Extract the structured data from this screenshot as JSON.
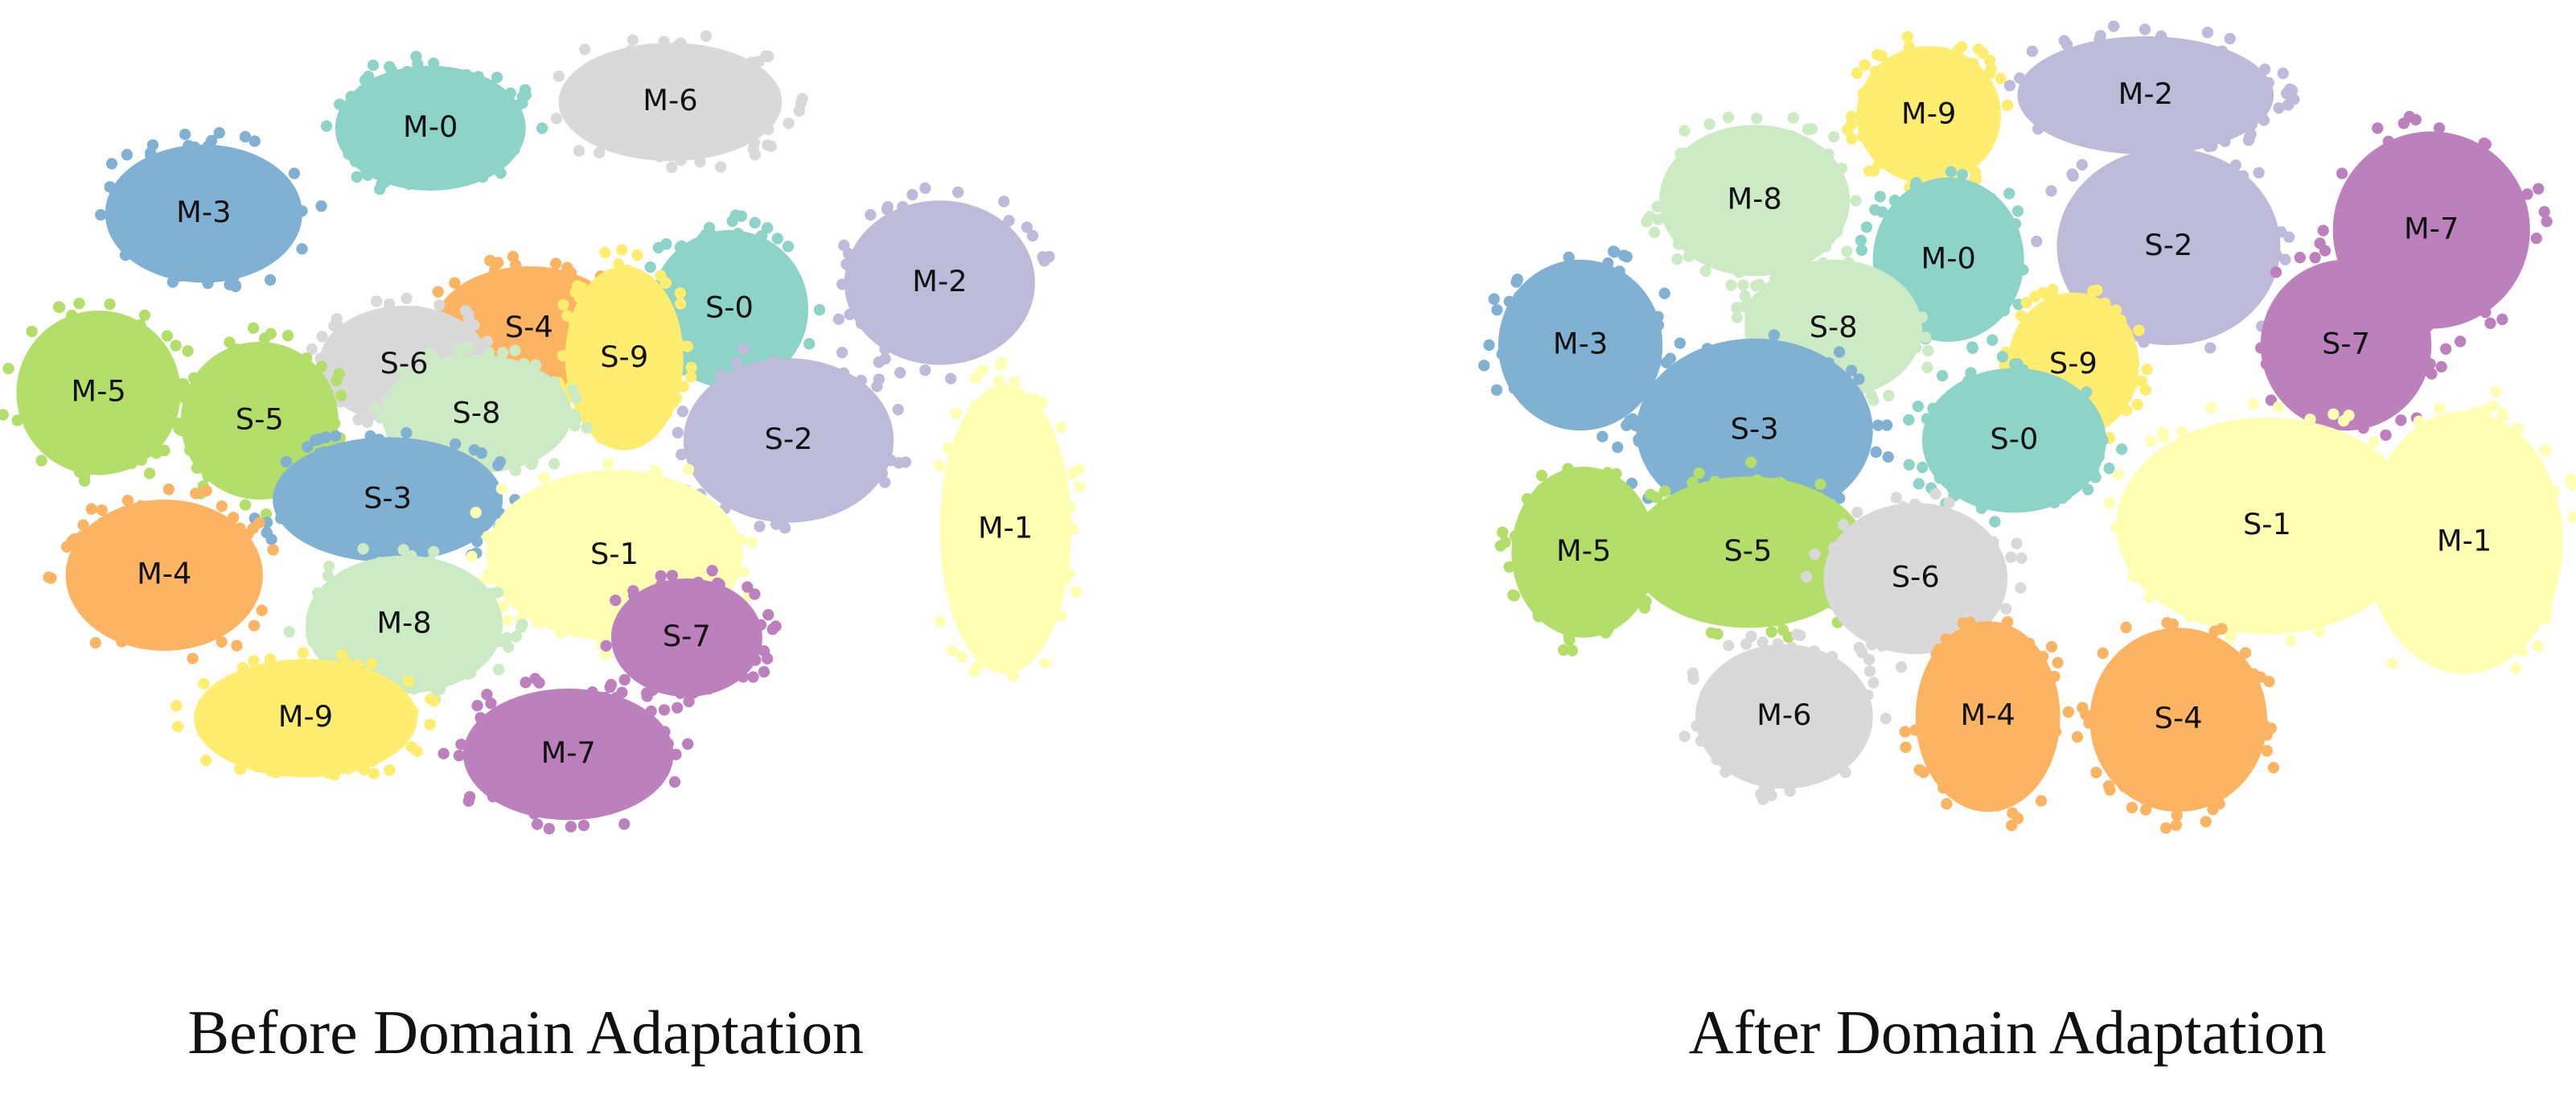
{
  "panels": [
    {
      "title": "Before Domain Adaptation",
      "clusters": [
        {
          "label": "M-0",
          "color": "#8dd3c7"
        },
        {
          "label": "M-6",
          "color": "#d9d9d9"
        },
        {
          "label": "M-3",
          "color": "#80b1d3"
        },
        {
          "label": "M-2",
          "color": "#bebada"
        },
        {
          "label": "S-4",
          "color": "#fdb462"
        },
        {
          "label": "S-0",
          "color": "#8dd3c7"
        },
        {
          "label": "S-6",
          "color": "#d9d9d9"
        },
        {
          "label": "S-9",
          "color": "#ffed6f"
        },
        {
          "label": "M-5",
          "color": "#b3de69"
        },
        {
          "label": "S-5",
          "color": "#b3de69"
        },
        {
          "label": "S-8",
          "color": "#ccebc5"
        },
        {
          "label": "S-2",
          "color": "#bebada"
        },
        {
          "label": "S-3",
          "color": "#80b1d3"
        },
        {
          "label": "M-1",
          "color": "#ffffb3"
        },
        {
          "label": "S-1",
          "color": "#ffffb3"
        },
        {
          "label": "M-4",
          "color": "#fdb462"
        },
        {
          "label": "M-8",
          "color": "#ccebc5"
        },
        {
          "label": "S-7",
          "color": "#bc80bd"
        },
        {
          "label": "M-9",
          "color": "#ffed6f"
        },
        {
          "label": "M-7",
          "color": "#bc80bd"
        }
      ]
    },
    {
      "title": "After Domain Adaptation",
      "clusters": [
        {
          "label": "M-9",
          "color": "#ffed6f"
        },
        {
          "label": "M-2",
          "color": "#bebada"
        },
        {
          "label": "M-8",
          "color": "#ccebc5"
        },
        {
          "label": "M-7",
          "color": "#bc80bd"
        },
        {
          "label": "S-2",
          "color": "#bebada"
        },
        {
          "label": "M-0",
          "color": "#8dd3c7"
        },
        {
          "label": "M-3",
          "color": "#80b1d3"
        },
        {
          "label": "S-8",
          "color": "#ccebc5"
        },
        {
          "label": "S-9",
          "color": "#ffed6f"
        },
        {
          "label": "S-7",
          "color": "#bc80bd"
        },
        {
          "label": "S-3",
          "color": "#80b1d3"
        },
        {
          "label": "S-0",
          "color": "#8dd3c7"
        },
        {
          "label": "S-1",
          "color": "#ffffb3"
        },
        {
          "label": "M-1",
          "color": "#ffffb3"
        },
        {
          "label": "M-5",
          "color": "#b3de69"
        },
        {
          "label": "S-5",
          "color": "#b3de69"
        },
        {
          "label": "S-6",
          "color": "#d9d9d9"
        },
        {
          "label": "M-6",
          "color": "#d9d9d9"
        },
        {
          "label": "M-4",
          "color": "#fdb462"
        },
        {
          "label": "S-4",
          "color": "#fdb462"
        }
      ]
    }
  ]
}
